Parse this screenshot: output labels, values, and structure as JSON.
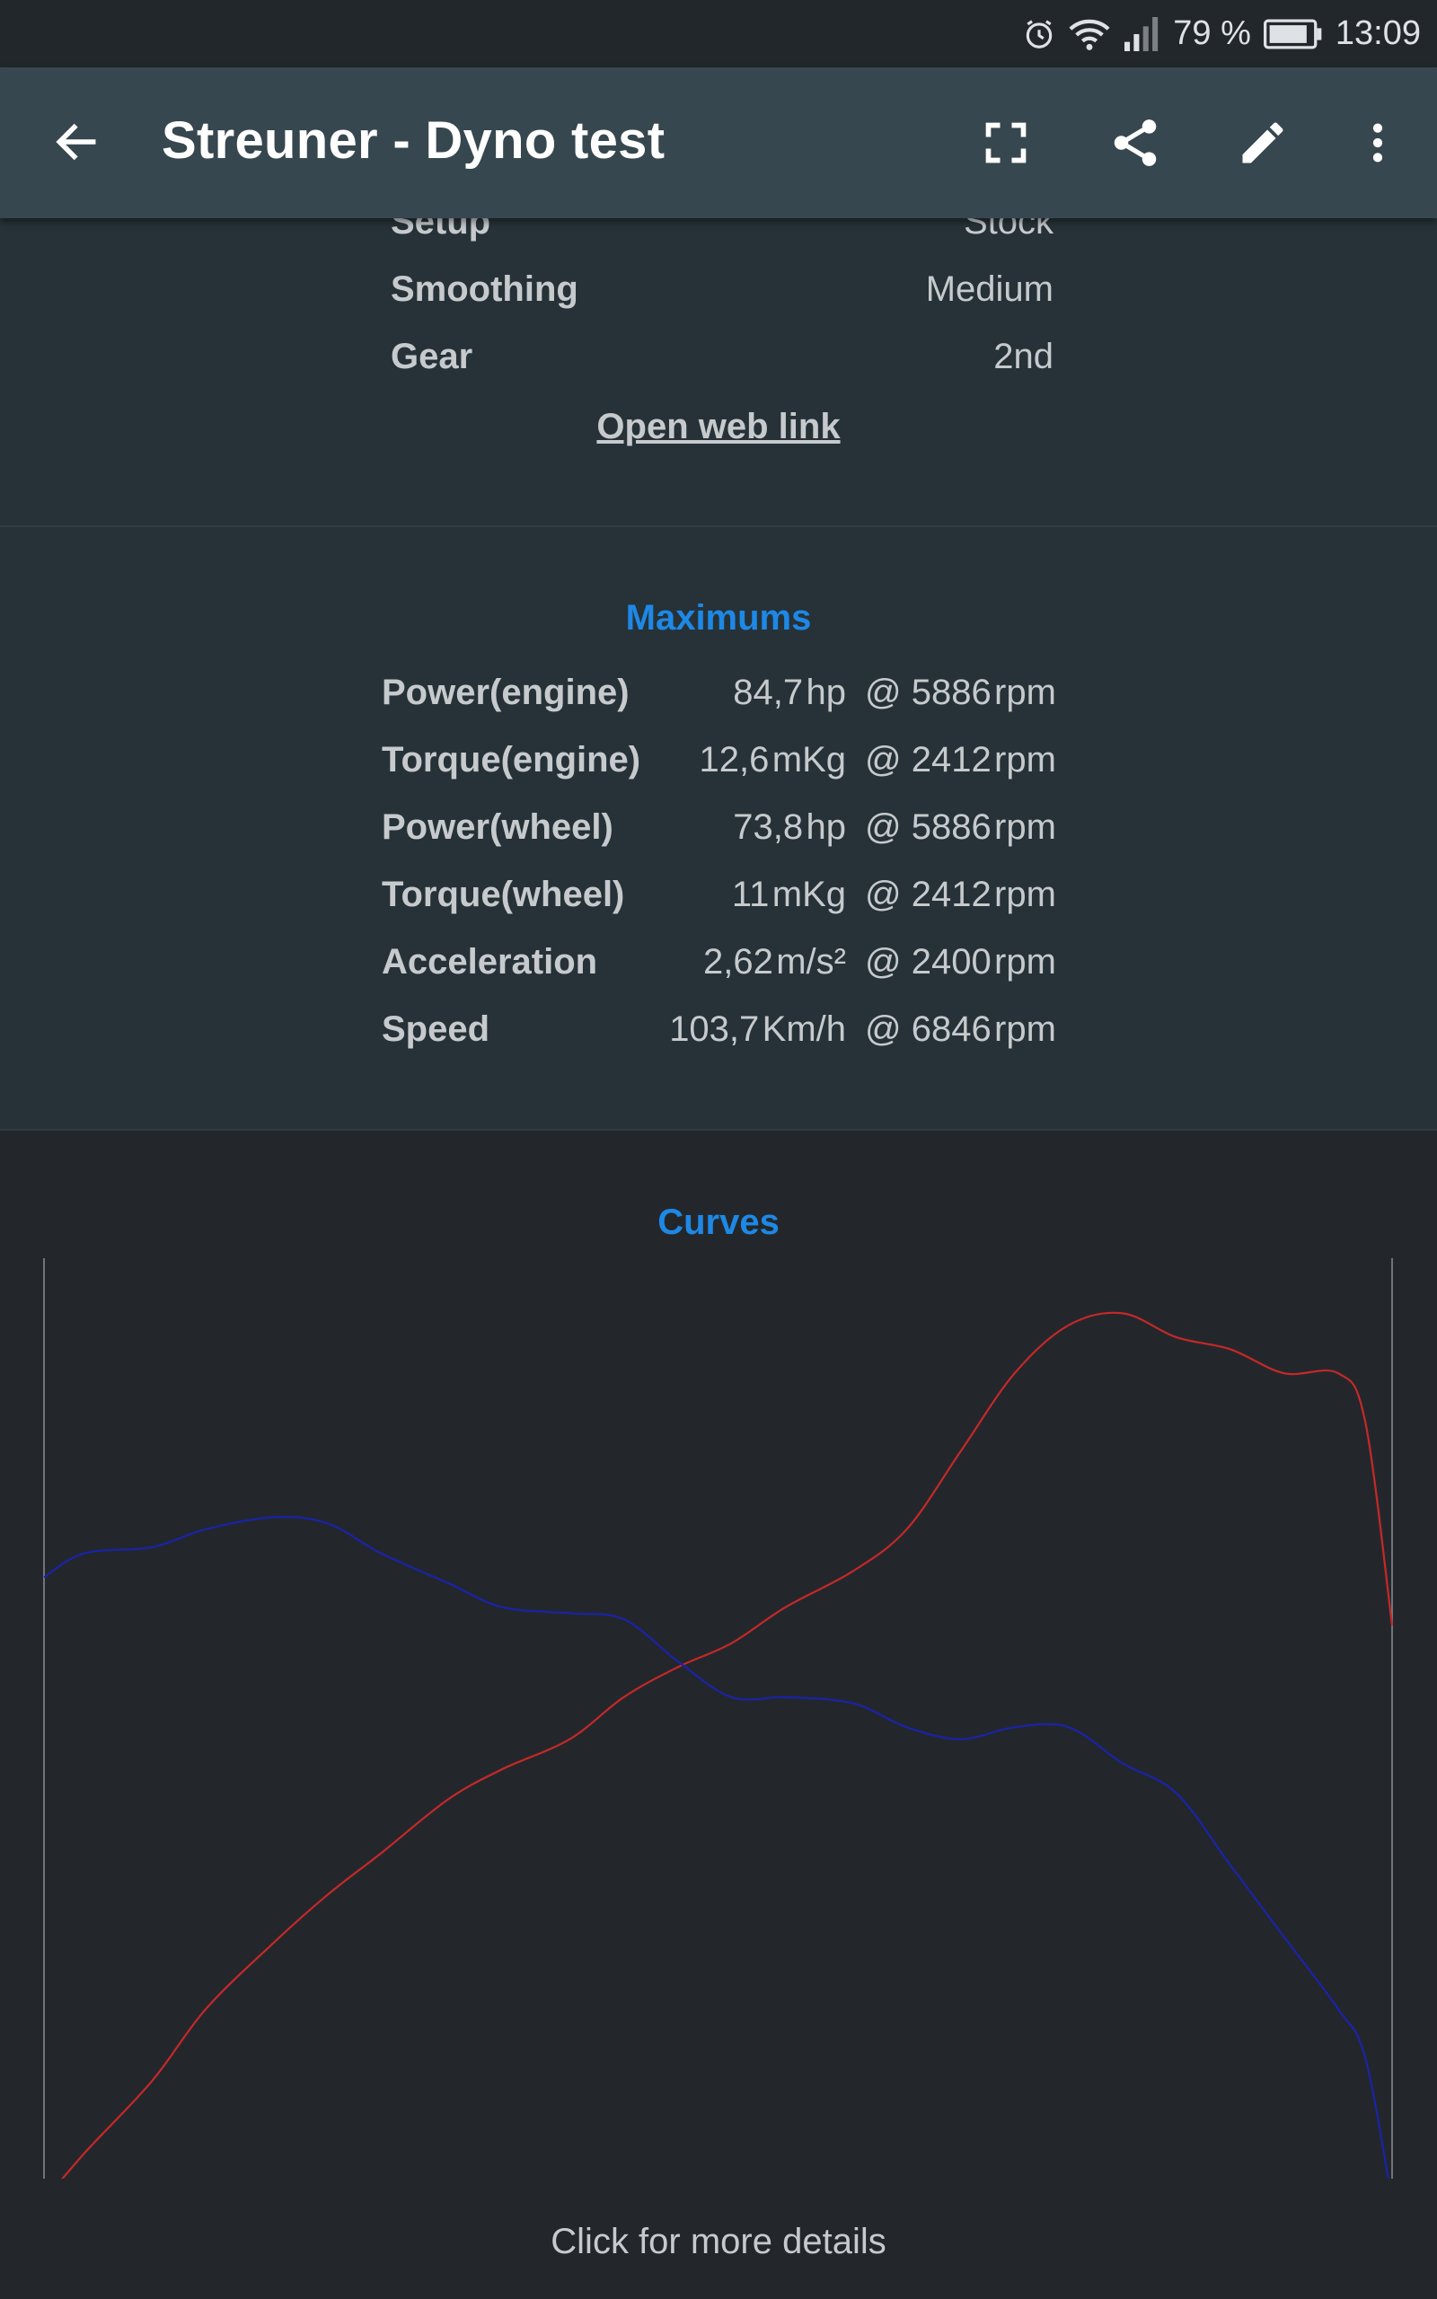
{
  "status_bar": {
    "battery_percent": "79 %",
    "time": "13:09",
    "icons": [
      "alarm-icon",
      "wifi-icon",
      "signal-icon",
      "battery-icon"
    ]
  },
  "app_bar": {
    "title": "Streuner - Dyno test",
    "icons": [
      "back-arrow-icon",
      "fullscreen-icon",
      "share-icon",
      "edit-icon",
      "more-vert-icon"
    ],
    "background_color": "#37474f"
  },
  "info": {
    "rows": [
      {
        "key": "Setup",
        "value": "Stock"
      },
      {
        "key": "Smoothing",
        "value": "Medium"
      },
      {
        "key": "Gear",
        "value": "2nd"
      }
    ],
    "web_link": "Open web link"
  },
  "maximums": {
    "title": "Maximums",
    "rows": [
      {
        "label": "Power(engine)",
        "value": "84,7",
        "unit": "hp",
        "rpm": "@ 5886",
        "rpm_unit": "rpm"
      },
      {
        "label": "Torque(engine)",
        "value": "12,6",
        "unit": "mKg",
        "rpm": "@ 2412",
        "rpm_unit": "rpm"
      },
      {
        "label": "Power(wheel)",
        "value": "73,8",
        "unit": "hp",
        "rpm": "@ 5886",
        "rpm_unit": "rpm"
      },
      {
        "label": "Torque(wheel)",
        "value": "11",
        "unit": "mKg",
        "rpm": "@ 2412",
        "rpm_unit": "rpm"
      },
      {
        "label": "Acceleration",
        "value": "2,62",
        "unit": "m/s²",
        "rpm": "@ 2400",
        "rpm_unit": "rpm"
      },
      {
        "label": "Speed",
        "value": "103,7",
        "unit": "Km/h",
        "rpm": "@ 6846",
        "rpm_unit": "rpm"
      }
    ]
  },
  "curves": {
    "title": "Curves",
    "footer": "Click for more details",
    "accent_color": "#1e88e5"
  },
  "chart_data": {
    "type": "line",
    "title": "Curves",
    "x": [
      0.0,
      0.03,
      0.08,
      0.12,
      0.17,
      0.21,
      0.25,
      0.3,
      0.34,
      0.39,
      0.43,
      0.47,
      0.51,
      0.55,
      0.6,
      0.64,
      0.68,
      0.72,
      0.76,
      0.8,
      0.84,
      0.88,
      0.92,
      0.96,
      0.98,
      1.0
    ],
    "series": [
      {
        "color": "#c62828",
        "values": [
          0.0,
          0.08,
          0.2,
          0.32,
          0.43,
          0.51,
          0.58,
          0.67,
          0.72,
          0.77,
          0.84,
          0.89,
          0.93,
          0.99,
          1.05,
          1.12,
          1.25,
          1.38,
          1.46,
          1.48,
          1.44,
          1.42,
          1.38,
          1.38,
          1.3,
          0.96
        ]
      },
      {
        "color": "#1a23a8",
        "values": [
          1.04,
          1.08,
          1.09,
          1.12,
          1.14,
          1.13,
          1.08,
          1.03,
          0.99,
          0.98,
          0.97,
          0.9,
          0.84,
          0.84,
          0.83,
          0.79,
          0.77,
          0.79,
          0.79,
          0.73,
          0.68,
          0.56,
          0.44,
          0.32,
          0.24,
          0.0
        ]
      }
    ]
  }
}
